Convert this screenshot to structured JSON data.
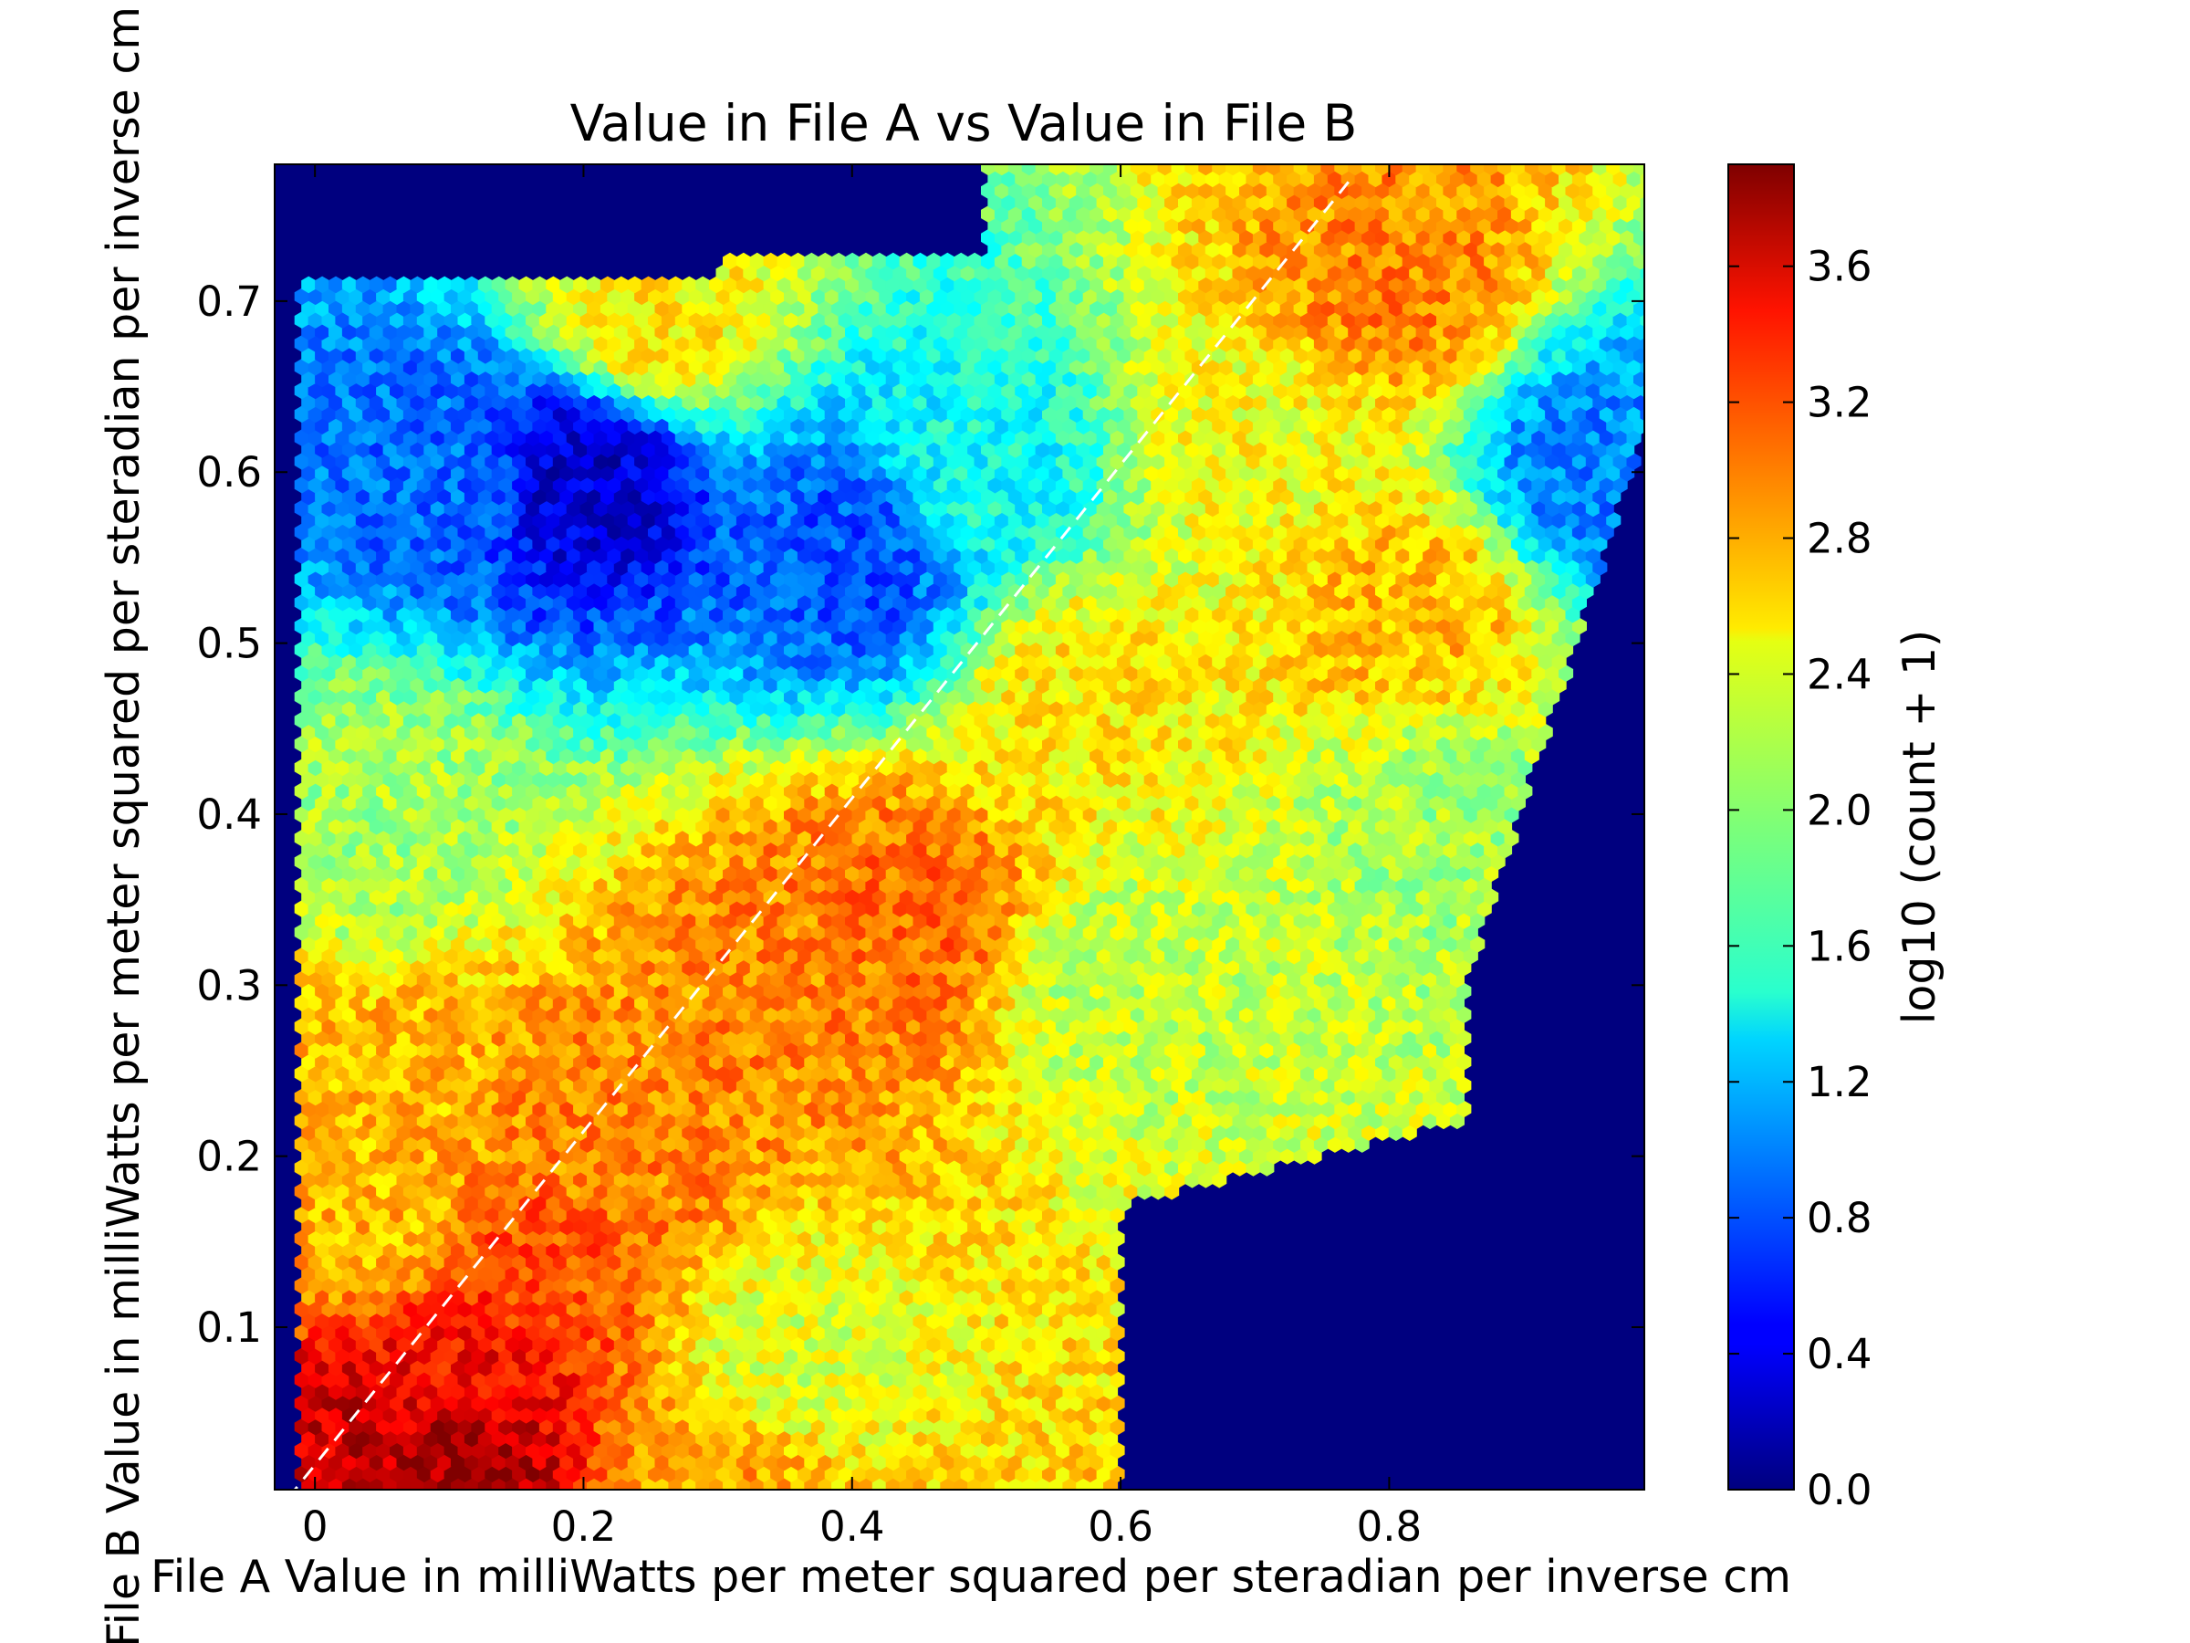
{
  "chart_data": {
    "type": "heatmap",
    "subtype": "hexbin",
    "title": "Value in File A vs Value in File B",
    "xlabel": "File A Value in milliWatts per meter squared per steradian per inverse cm",
    "ylabel": "File B Value in milliWatts per meter squared per steradian per inverse cm",
    "xlim": [
      -0.03,
      0.99
    ],
    "ylim": [
      0.005,
      0.78
    ],
    "x_ticks": [
      0,
      0.2,
      0.4,
      0.6,
      0.8
    ],
    "x_tick_labels": [
      "0",
      "0.2",
      "0.4",
      "0.6",
      "0.8"
    ],
    "y_ticks": [
      0.1,
      0.2,
      0.3,
      0.4,
      0.5,
      0.6,
      0.7
    ],
    "y_tick_labels": [
      "0.1",
      "0.2",
      "0.3",
      "0.4",
      "0.5",
      "0.6",
      "0.7"
    ],
    "colorbar": {
      "label": "log10 (count + 1)",
      "min": 0.0,
      "max": 3.9,
      "colormap": "jet",
      "ticks": [
        0.0,
        0.4,
        0.8,
        1.2,
        1.6,
        2.0,
        2.4,
        2.8,
        3.2,
        3.6
      ],
      "tick_labels": [
        "0.0",
        "0.4",
        "0.8",
        "1.2",
        "1.6",
        "2.0",
        "2.4",
        "2.8",
        "3.2",
        "3.6"
      ]
    },
    "reference_line": {
      "style": "dashed",
      "color": "#ffffff",
      "points": [
        [
          -0.02,
          0.0
        ],
        [
          0.77,
          0.77
        ]
      ]
    },
    "density_regions": [
      {
        "x": 0.1,
        "y": 0.012,
        "value": 3.8
      },
      {
        "x": 0.05,
        "y": 0.03,
        "value": 3.6
      },
      {
        "x": 0.11,
        "y": 0.08,
        "value": 3.4
      },
      {
        "x": 0.17,
        "y": 0.14,
        "value": 3.1
      },
      {
        "x": 0.22,
        "y": 0.2,
        "value": 2.9
      },
      {
        "x": 0.36,
        "y": 0.31,
        "value": 2.9
      },
      {
        "x": 0.44,
        "y": 0.34,
        "value": 3.0
      },
      {
        "x": 0.3,
        "y": 0.015,
        "value": 2.8
      },
      {
        "x": 0.05,
        "y": 0.16,
        "value": 2.7
      },
      {
        "x": 0.05,
        "y": 0.225,
        "value": 2.7
      },
      {
        "x": 0.8,
        "y": 0.71,
        "value": 2.9
      },
      {
        "x": 0.82,
        "y": 0.52,
        "value": 2.7
      },
      {
        "x": 0.25,
        "y": 0.69,
        "value": 2.5
      },
      {
        "x": 0.58,
        "y": 0.47,
        "value": 2.5
      },
      {
        "x": 0.7,
        "y": 0.62,
        "value": 2.4
      },
      {
        "x": 0.35,
        "y": 0.08,
        "value": 2.3
      },
      {
        "x": 0.6,
        "y": 0.3,
        "value": 2.2
      },
      {
        "x": 0.05,
        "y": 0.4,
        "value": 2.1
      },
      {
        "x": 0.85,
        "y": 0.4,
        "value": 2.1
      },
      {
        "x": 0.5,
        "y": 0.6,
        "value": 1.5
      },
      {
        "x": 0.1,
        "y": 0.6,
        "value": 0.9
      },
      {
        "x": 0.2,
        "y": 0.6,
        "value": 0.3
      },
      {
        "x": 0.4,
        "y": 0.55,
        "value": 0.8
      },
      {
        "x": 0.95,
        "y": 0.6,
        "value": 1.0
      }
    ]
  }
}
